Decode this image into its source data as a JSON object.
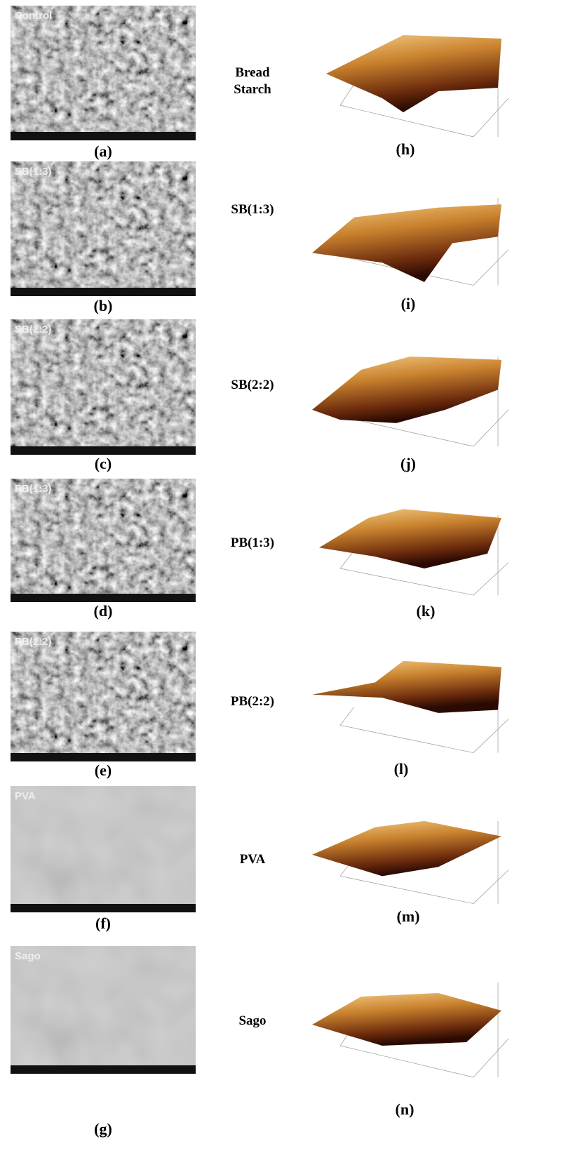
{
  "rows": [
    {
      "sem_label": "Control",
      "sem_caption": "(a)",
      "afm_label": "Bread Starch",
      "afm_caption": "(h)"
    },
    {
      "sem_label": "SB(1:3)",
      "sem_caption": "(b)",
      "afm_label": "SB(1:3)",
      "afm_caption": "(i)"
    },
    {
      "sem_label": "SB(2:2)",
      "sem_caption": "(c)",
      "afm_label": "SB(2:2)",
      "afm_caption": "(j)"
    },
    {
      "sem_label": "PB(1:3)",
      "sem_caption": "(d)",
      "afm_label": "PB(1:3)",
      "afm_caption": "(k)"
    },
    {
      "sem_label": "PB(2:2)",
      "sem_caption": "(e)",
      "afm_label": "PB(2:2)",
      "afm_caption": "(l)"
    },
    {
      "sem_label": "PVA",
      "sem_caption": "(f)",
      "afm_label": "PVA",
      "afm_caption": "(m)"
    },
    {
      "sem_label": "Sago",
      "sem_caption": "(g)",
      "afm_label": "Sago",
      "afm_caption": "(n)"
    }
  ]
}
